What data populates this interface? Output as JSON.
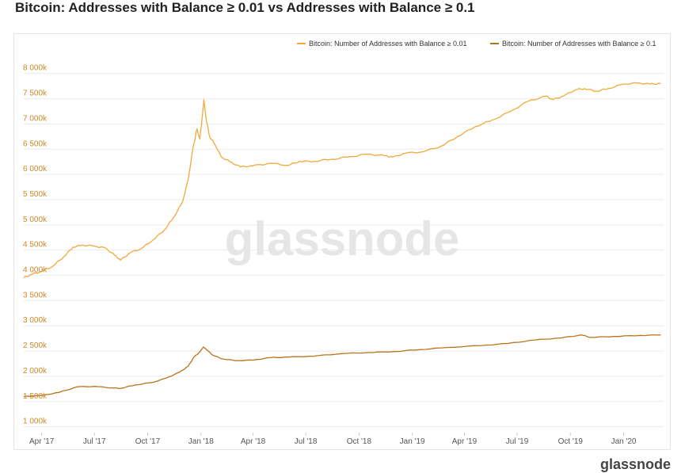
{
  "title": "Bitcoin: Addresses with Balance ≥ 0.01 vs Addresses with Balance ≥ 0.1",
  "watermark": "glassnode",
  "footer_logo": "glassnode",
  "colors": {
    "series_a": "#f2a93b",
    "series_b": "#b8741a",
    "grid": "#ececec",
    "ytick": "#c9892a"
  },
  "chart_data": {
    "type": "line",
    "title": "Bitcoin: Addresses with Balance ≥ 0.01 vs Addresses with Balance ≥ 0.1",
    "legend_position": "top-right",
    "grid": true,
    "ylim": [
      900000,
      8200000
    ],
    "y_ticks": [
      1000000,
      1500000,
      2000000,
      2500000,
      3000000,
      3500000,
      4000000,
      4500000,
      5000000,
      5500000,
      6000000,
      6500000,
      7000000,
      7500000,
      8000000
    ],
    "y_tick_labels": [
      "1 000k",
      "1 500k",
      "2 000k",
      "2 500k",
      "3 000k",
      "3 500k",
      "4 000k",
      "4 500k",
      "5 000k",
      "5 500k",
      "6 000k",
      "6 500k",
      "7 000k",
      "7 500k",
      "8 000k"
    ],
    "xlim": [
      "2017-03-01",
      "2020-03-10"
    ],
    "x_ticks": [
      "2017-04-01",
      "2017-07-01",
      "2017-10-01",
      "2018-01-01",
      "2018-04-01",
      "2018-07-01",
      "2018-10-01",
      "2019-01-01",
      "2019-04-01",
      "2019-07-01",
      "2019-10-01",
      "2020-01-01"
    ],
    "x_tick_labels": [
      "Apr '17",
      "Jul '17",
      "Oct '17",
      "Jan '18",
      "Apr '18",
      "Jul '18",
      "Oct '18",
      "Jan '19",
      "Apr '19",
      "Jul '19",
      "Oct '19",
      "Jan '20"
    ],
    "series": [
      {
        "name": "Bitcoin: Number of Addresses with Balance ≥ 0.01",
        "color": "#f2a93b",
        "points": [
          [
            "2017-03-01",
            3950000
          ],
          [
            "2017-03-15",
            4020000
          ],
          [
            "2017-04-01",
            4080000
          ],
          [
            "2017-04-20",
            4180000
          ],
          [
            "2017-05-10",
            4380000
          ],
          [
            "2017-05-25",
            4560000
          ],
          [
            "2017-06-10",
            4600000
          ],
          [
            "2017-07-01",
            4580000
          ],
          [
            "2017-07-20",
            4540000
          ],
          [
            "2017-08-05",
            4400000
          ],
          [
            "2017-08-15",
            4300000
          ],
          [
            "2017-09-01",
            4450000
          ],
          [
            "2017-09-20",
            4530000
          ],
          [
            "2017-10-10",
            4700000
          ],
          [
            "2017-10-30",
            4900000
          ],
          [
            "2017-11-15",
            5150000
          ],
          [
            "2017-11-30",
            5450000
          ],
          [
            "2017-12-10",
            5900000
          ],
          [
            "2017-12-18",
            6500000
          ],
          [
            "2017-12-25",
            6900000
          ],
          [
            "2017-12-30",
            6700000
          ],
          [
            "2018-01-03",
            7100000
          ],
          [
            "2018-01-06",
            7480000
          ],
          [
            "2018-01-10",
            7100000
          ],
          [
            "2018-01-16",
            6750000
          ],
          [
            "2018-01-25",
            6600000
          ],
          [
            "2018-02-05",
            6350000
          ],
          [
            "2018-02-20",
            6250000
          ],
          [
            "2018-03-10",
            6150000
          ],
          [
            "2018-04-01",
            6170000
          ],
          [
            "2018-05-01",
            6220000
          ],
          [
            "2018-06-01",
            6180000
          ],
          [
            "2018-06-20",
            6260000
          ],
          [
            "2018-07-15",
            6260000
          ],
          [
            "2018-08-15",
            6300000
          ],
          [
            "2018-09-15",
            6350000
          ],
          [
            "2018-10-15",
            6400000
          ],
          [
            "2018-11-15",
            6370000
          ],
          [
            "2018-11-28",
            6340000
          ],
          [
            "2018-12-20",
            6420000
          ],
          [
            "2019-01-20",
            6450000
          ],
          [
            "2019-02-20",
            6560000
          ],
          [
            "2019-03-20",
            6750000
          ],
          [
            "2019-04-20",
            6950000
          ],
          [
            "2019-05-20",
            7080000
          ],
          [
            "2019-06-20",
            7250000
          ],
          [
            "2019-07-20",
            7450000
          ],
          [
            "2019-08-20",
            7550000
          ],
          [
            "2019-09-01",
            7480000
          ],
          [
            "2019-09-20",
            7560000
          ],
          [
            "2019-10-10",
            7680000
          ],
          [
            "2019-10-25",
            7700000
          ],
          [
            "2019-11-15",
            7650000
          ],
          [
            "2019-12-05",
            7700000
          ],
          [
            "2020-01-01",
            7790000
          ],
          [
            "2020-01-25",
            7810000
          ],
          [
            "2020-02-15",
            7790000
          ],
          [
            "2020-03-05",
            7800000
          ]
        ]
      },
      {
        "name": "Bitcoin: Number of Addresses with Balance ≥ 0.1",
        "color": "#b8741a",
        "points": [
          [
            "2017-03-01",
            1600000
          ],
          [
            "2017-04-01",
            1620000
          ],
          [
            "2017-05-01",
            1680000
          ],
          [
            "2017-06-01",
            1790000
          ],
          [
            "2017-07-01",
            1800000
          ],
          [
            "2017-08-01",
            1770000
          ],
          [
            "2017-08-15",
            1760000
          ],
          [
            "2017-09-10",
            1830000
          ],
          [
            "2017-10-10",
            1880000
          ],
          [
            "2017-11-01",
            1960000
          ],
          [
            "2017-11-25",
            2080000
          ],
          [
            "2017-12-10",
            2200000
          ],
          [
            "2017-12-20",
            2380000
          ],
          [
            "2017-12-30",
            2480000
          ],
          [
            "2018-01-05",
            2580000
          ],
          [
            "2018-01-12",
            2520000
          ],
          [
            "2018-01-20",
            2430000
          ],
          [
            "2018-02-05",
            2350000
          ],
          [
            "2018-03-01",
            2310000
          ],
          [
            "2018-04-01",
            2320000
          ],
          [
            "2018-05-01",
            2370000
          ],
          [
            "2018-06-01",
            2380000
          ],
          [
            "2018-07-15",
            2400000
          ],
          [
            "2018-09-01",
            2450000
          ],
          [
            "2018-10-15",
            2470000
          ],
          [
            "2018-12-01",
            2490000
          ],
          [
            "2019-01-15",
            2530000
          ],
          [
            "2019-03-01",
            2570000
          ],
          [
            "2019-05-01",
            2610000
          ],
          [
            "2019-06-15",
            2650000
          ],
          [
            "2019-08-01",
            2720000
          ],
          [
            "2019-09-15",
            2760000
          ],
          [
            "2019-10-20",
            2820000
          ],
          [
            "2019-11-05",
            2770000
          ],
          [
            "2019-12-15",
            2790000
          ],
          [
            "2020-01-30",
            2810000
          ],
          [
            "2020-03-05",
            2820000
          ]
        ]
      }
    ]
  }
}
